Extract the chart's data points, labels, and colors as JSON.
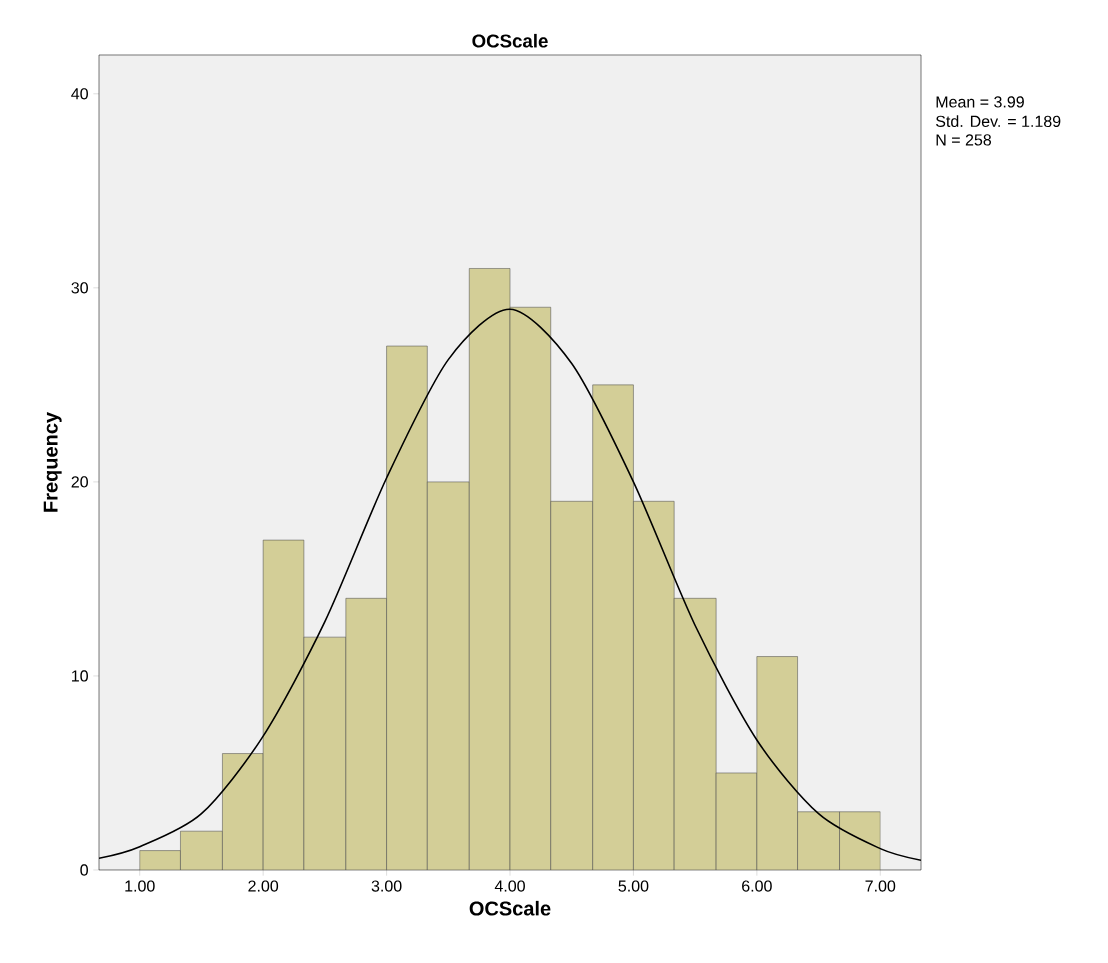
{
  "chart_data": {
    "type": "histogram",
    "title": "OCScale",
    "xlabel": "OCScale",
    "ylabel": "Frequency",
    "bins": [
      1.0,
      1.33,
      1.67,
      2.0,
      2.33,
      2.67,
      3.0,
      3.33,
      3.67,
      4.0,
      4.33,
      4.67,
      5.0,
      5.33,
      5.67,
      6.0,
      6.33,
      6.67,
      7.0
    ],
    "values": [
      1,
      2,
      6,
      17,
      12,
      14,
      27,
      20,
      31,
      29,
      19,
      25,
      19,
      14,
      5,
      11,
      3,
      3
    ],
    "color": "#d3ce97",
    "series": [
      {
        "type": "line",
        "color": "#000000",
        "x": [
          0.67,
          1.0,
          1.5,
          2.0,
          2.5,
          3.0,
          3.5,
          4.0,
          4.5,
          5.0,
          5.5,
          6.0,
          6.5,
          7.0,
          7.33
        ],
        "values": [
          0.6,
          1.2,
          2.9,
          6.9,
          12.8,
          20.2,
          26.3,
          28.9,
          26.1,
          20.0,
          12.6,
          6.7,
          2.9,
          1.1,
          0.5
        ]
      }
    ],
    "xlim": [
      0.67,
      7.33
    ],
    "ylim": [
      0,
      42
    ],
    "xticks": [
      {
        "value": 1,
        "label": "1.00"
      },
      {
        "value": 2,
        "label": "2.00"
      },
      {
        "value": 3,
        "label": "3.00"
      },
      {
        "value": 4,
        "label": "4.00"
      },
      {
        "value": 5,
        "label": "5.00"
      },
      {
        "value": 6,
        "label": "6.00"
      },
      {
        "value": 7,
        "label": "7.00"
      }
    ],
    "yticks": [
      0,
      10,
      20,
      30,
      40
    ],
    "annotations": [
      "Mean = 3.99",
      "Std. Dev. = 1.189",
      "N = 258"
    ]
  }
}
